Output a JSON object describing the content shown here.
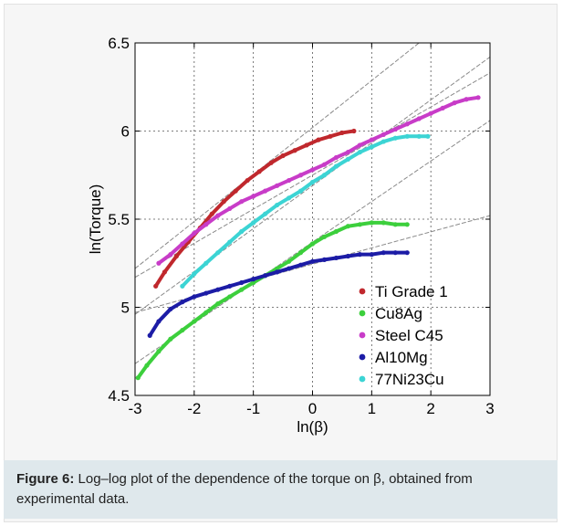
{
  "figure": {
    "caption_label": "Figure 6:",
    "caption_text": " Log–log plot of the dependence of the torque on β, obtained from experimental data."
  },
  "chart_data": {
    "type": "scatter",
    "title": "",
    "xlabel": "ln(β)",
    "ylabel": "ln(Torque)",
    "xlim": [
      -3,
      3
    ],
    "ylim": [
      4.5,
      6.5
    ],
    "xticks": [
      -3,
      -2,
      -1,
      0,
      1,
      2,
      3
    ],
    "yticks": [
      4.5,
      5,
      5.5,
      6,
      6.5
    ],
    "xtick_labels": [
      "-3",
      "-2",
      "-1",
      "0",
      "1",
      "2",
      "3"
    ],
    "ytick_labels": [
      "4.5",
      "5",
      "5.5",
      "6",
      "6.5"
    ],
    "grid": "dotted at x=-2..2 and y=5, 5.5, 6",
    "legend_position": "lower-right",
    "series": [
      {
        "name": "Ti Grade 1",
        "color": "#c0282d",
        "x": [
          -2.65,
          -2.5,
          -2.3,
          -2.1,
          -1.9,
          -1.7,
          -1.5,
          -1.3,
          -1.1,
          -0.9,
          -0.7,
          -0.5,
          -0.3,
          -0.1,
          0.1,
          0.3,
          0.5,
          0.7
        ],
        "y": [
          5.12,
          5.2,
          5.29,
          5.37,
          5.45,
          5.53,
          5.6,
          5.66,
          5.72,
          5.77,
          5.82,
          5.86,
          5.89,
          5.92,
          5.95,
          5.97,
          5.99,
          6.0
        ]
      },
      {
        "name": "Cu8Ag",
        "color": "#3ccf3c",
        "x": [
          -2.95,
          -2.8,
          -2.6,
          -2.4,
          -2.2,
          -2.0,
          -1.8,
          -1.6,
          -1.4,
          -1.2,
          -1.0,
          -0.8,
          -0.6,
          -0.4,
          -0.2,
          0.0,
          0.2,
          0.4,
          0.6,
          0.8,
          1.0,
          1.2,
          1.4,
          1.6
        ],
        "y": [
          4.6,
          4.67,
          4.75,
          4.82,
          4.87,
          4.92,
          4.97,
          5.02,
          5.06,
          5.1,
          5.14,
          5.18,
          5.22,
          5.26,
          5.31,
          5.36,
          5.4,
          5.43,
          5.46,
          5.47,
          5.48,
          5.48,
          5.47,
          5.47
        ]
      },
      {
        "name": "Steel C45",
        "color": "#c83cc8",
        "x": [
          -2.6,
          -2.4,
          -2.2,
          -2.0,
          -1.8,
          -1.6,
          -1.4,
          -1.2,
          -1.0,
          -0.8,
          -0.6,
          -0.4,
          -0.2,
          0.0,
          0.2,
          0.4,
          0.6,
          0.8,
          1.0,
          1.2,
          1.4,
          1.6,
          1.8,
          2.0,
          2.2,
          2.4,
          2.6,
          2.8
        ],
        "y": [
          5.25,
          5.3,
          5.36,
          5.42,
          5.47,
          5.52,
          5.56,
          5.6,
          5.63,
          5.66,
          5.69,
          5.72,
          5.75,
          5.78,
          5.81,
          5.85,
          5.88,
          5.92,
          5.95,
          5.98,
          6.01,
          6.04,
          6.07,
          6.1,
          6.13,
          6.16,
          6.18,
          6.19
        ]
      },
      {
        "name": "Al10Mg",
        "color": "#1c1ca6",
        "x": [
          -2.75,
          -2.6,
          -2.4,
          -2.2,
          -2.0,
          -1.8,
          -1.6,
          -1.4,
          -1.2,
          -1.0,
          -0.8,
          -0.6,
          -0.4,
          -0.2,
          0.0,
          0.2,
          0.4,
          0.6,
          0.8,
          1.0,
          1.2,
          1.4,
          1.6
        ],
        "y": [
          4.84,
          4.92,
          4.99,
          5.03,
          5.06,
          5.08,
          5.1,
          5.12,
          5.14,
          5.16,
          5.18,
          5.2,
          5.22,
          5.24,
          5.26,
          5.27,
          5.28,
          5.29,
          5.3,
          5.3,
          5.31,
          5.31,
          5.31
        ]
      },
      {
        "name": "77Ni23Cu",
        "color": "#3cd4d4",
        "x": [
          -2.2,
          -2.0,
          -1.8,
          -1.6,
          -1.4,
          -1.2,
          -1.0,
          -0.8,
          -0.6,
          -0.4,
          -0.2,
          0.0,
          0.2,
          0.4,
          0.6,
          0.8,
          1.0,
          1.2,
          1.4,
          1.6,
          1.8,
          1.95
        ],
        "y": [
          5.12,
          5.19,
          5.25,
          5.31,
          5.37,
          5.43,
          5.48,
          5.53,
          5.58,
          5.62,
          5.66,
          5.71,
          5.75,
          5.8,
          5.84,
          5.88,
          5.91,
          5.94,
          5.96,
          5.97,
          5.97,
          5.97
        ]
      }
    ],
    "fit_lines": [
      {
        "x": [
          -3.0,
          1.8
        ],
        "y": [
          5.22,
          6.5
        ]
      },
      {
        "x": [
          -3.0,
          3.0
        ],
        "y": [
          5.17,
          6.33
        ]
      },
      {
        "x": [
          -3.0,
          3.0
        ],
        "y": [
          4.96,
          6.42
        ]
      },
      {
        "x": [
          -3.0,
          3.0
        ],
        "y": [
          4.68,
          6.06
        ]
      },
      {
        "x": [
          -3.0,
          3.0
        ],
        "y": [
          4.97,
          5.52
        ]
      }
    ]
  }
}
